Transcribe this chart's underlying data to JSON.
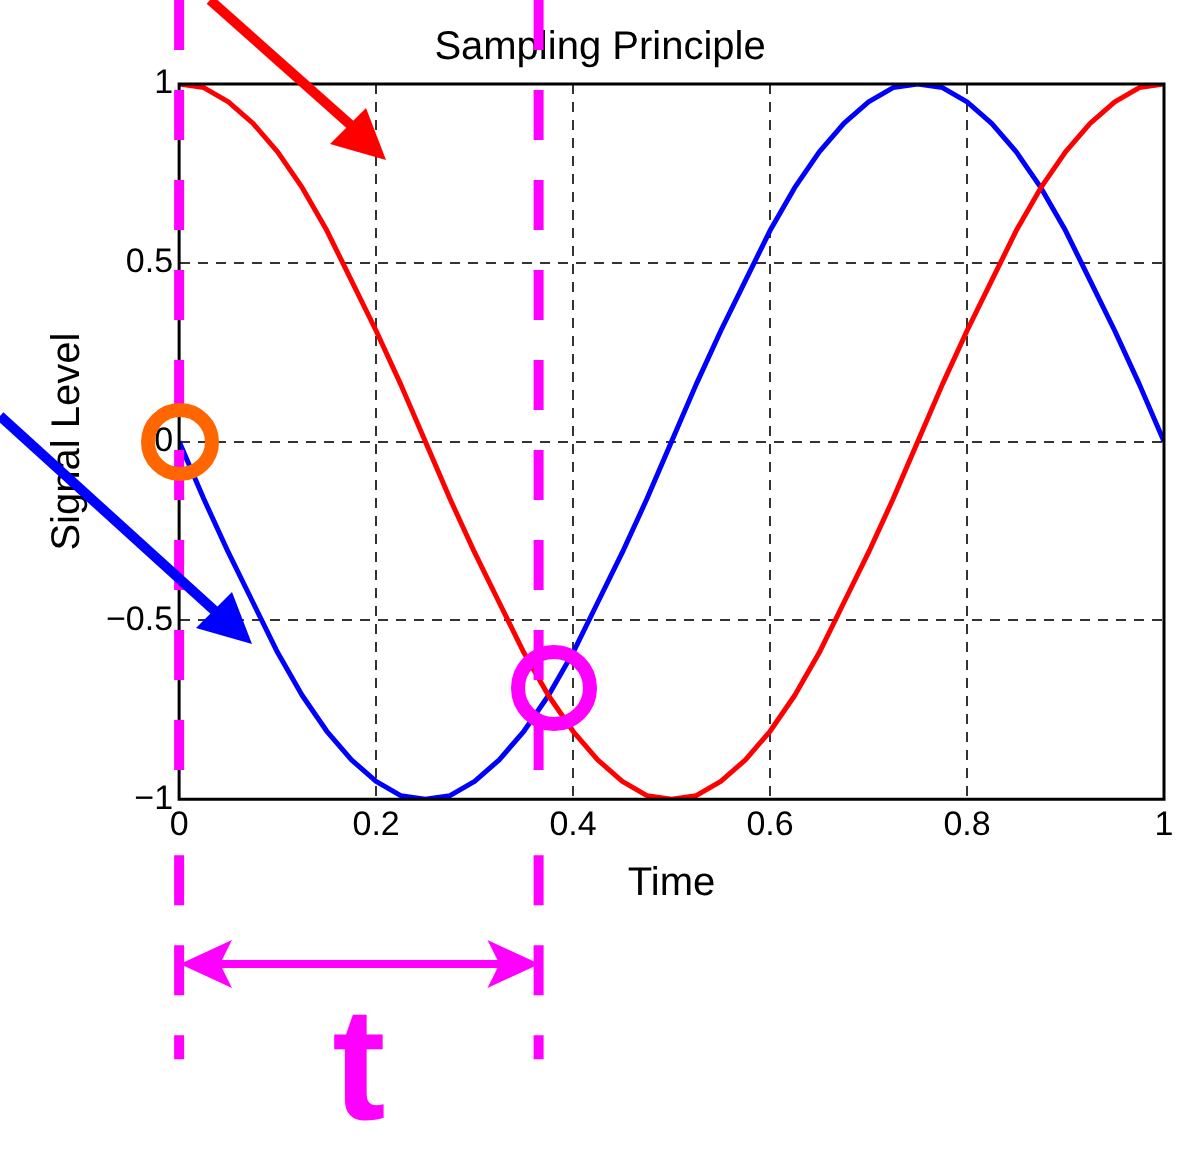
{
  "chart_data": {
    "type": "line",
    "title": "Sampling Principle",
    "xlabel": "Time",
    "ylabel": "Signal Level",
    "x": [
      0,
      0.025,
      0.05,
      0.075,
      0.1,
      0.125,
      0.15,
      0.175,
      0.2,
      0.225,
      0.25,
      0.275,
      0.3,
      0.325,
      0.35,
      0.375,
      0.4,
      0.425,
      0.45,
      0.475,
      0.5,
      0.525,
      0.55,
      0.575,
      0.6,
      0.625,
      0.65,
      0.675,
      0.7,
      0.725,
      0.75,
      0.775,
      0.8,
      0.825,
      0.85,
      0.875,
      0.9,
      0.925,
      0.95,
      0.975,
      1
    ],
    "series": [
      {
        "color": "#ff0000",
        "values": [
          1,
          0.99,
          0.95,
          0.89,
          0.81,
          0.71,
          0.59,
          0.45,
          0.31,
          0.16,
          0,
          -0.16,
          -0.31,
          -0.45,
          -0.59,
          -0.71,
          -0.81,
          -0.89,
          -0.95,
          -0.99,
          -1,
          -0.99,
          -0.95,
          -0.89,
          -0.81,
          -0.71,
          -0.59,
          -0.45,
          -0.31,
          -0.16,
          0,
          0.16,
          0.31,
          0.45,
          0.59,
          0.71,
          0.81,
          0.89,
          0.95,
          0.99,
          1
        ]
      },
      {
        "color": "#0000ff",
        "values": [
          0,
          -0.16,
          -0.31,
          -0.45,
          -0.59,
          -0.71,
          -0.81,
          -0.89,
          -0.95,
          -0.99,
          -1,
          -0.99,
          -0.95,
          -0.89,
          -0.81,
          -0.71,
          -0.59,
          -0.45,
          -0.31,
          -0.16,
          0,
          0.16,
          0.31,
          0.45,
          0.59,
          0.71,
          0.81,
          0.89,
          0.95,
          0.99,
          1,
          0.99,
          0.95,
          0.89,
          0.81,
          0.71,
          0.59,
          0.45,
          0.31,
          0.16,
          0
        ]
      }
    ],
    "xlim": [
      0,
      1
    ],
    "xticks": [
      0,
      0.2,
      0.4,
      0.6,
      0.8,
      1
    ],
    "ylim": [
      -1,
      1
    ],
    "yticks": [
      {
        "value": -1,
        "label": "−1"
      },
      {
        "value": -0.5,
        "label": "−0.5"
      },
      0,
      0.5,
      1
    ],
    "grid": true,
    "legend": false,
    "marker": "none",
    "line_style": "solid",
    "ref_lines": [
      {
        "axis": "x",
        "value": 0,
        "color": "#ff00ff",
        "line_style": "dashed"
      },
      {
        "axis": "x",
        "value": 0.365,
        "color": "#ff00ff",
        "line_style": "dashed"
      }
    ],
    "annotations": [
      "t"
    ]
  }
}
